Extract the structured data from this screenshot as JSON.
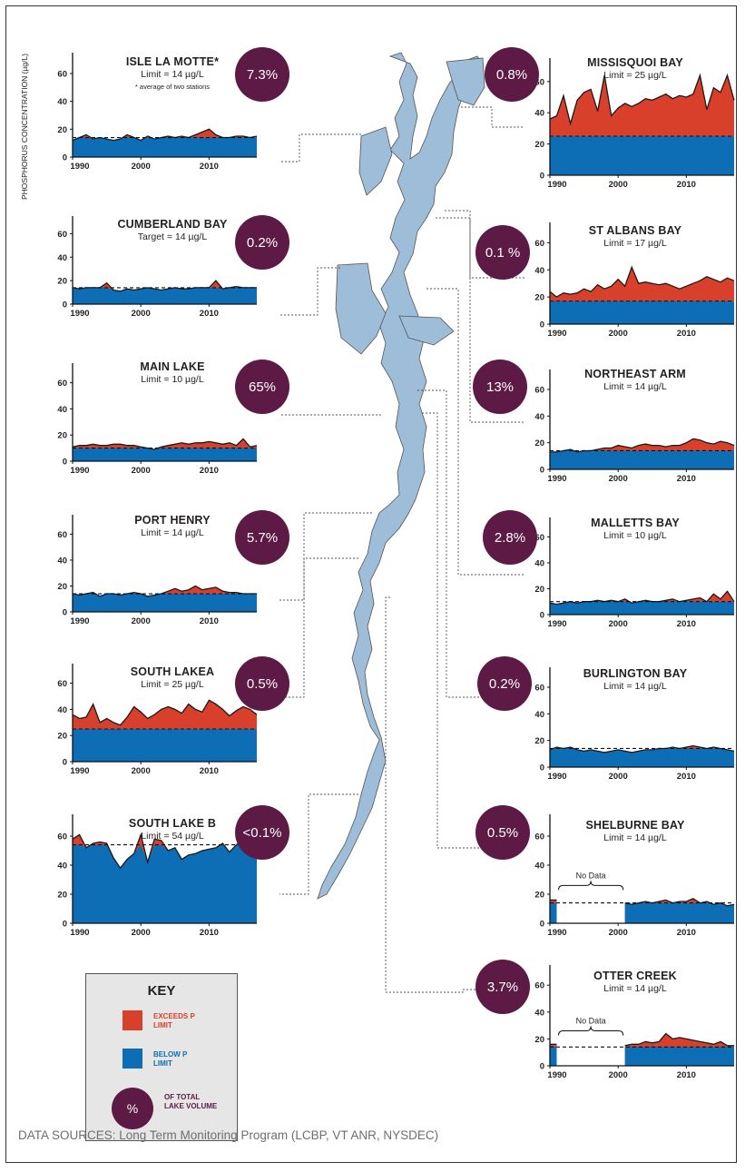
{
  "y_axis_label": "PHOSPHORUS CONCENTRATION (µg/L)",
  "source_text": "DATA SOURCES: Long Term Monitoring Program (LCBP, VT ANR, NYSDEC)",
  "key": {
    "title": "KEY",
    "exceeds_label": "EXCEEDS P LIMIT",
    "below_label": "BELOW P LIMIT",
    "badge_symbol": "%",
    "volume_label": "OF TOTAL LAKE VOLUME"
  },
  "colors": {
    "exceeds": "#d9402b",
    "below": "#0d6db5",
    "badge": "#5c1a44",
    "lake": "#9dbdd9"
  },
  "no_data_label": "No Data",
  "chart_data": [
    {
      "id": "isle-la-motte",
      "type": "area",
      "title": "ISLE LA MOTTE*",
      "limit_text": "Limit = 14 µg/L",
      "note": "* average of two stations",
      "percent": "7.3%",
      "limit": 14,
      "x": [
        1990,
        1991,
        1992,
        1993,
        1994,
        1995,
        1996,
        1997,
        1998,
        1999,
        2000,
        2001,
        2002,
        2003,
        2004,
        2005,
        2006,
        2007,
        2008,
        2009,
        2010,
        2011,
        2012,
        2013,
        2014,
        2015,
        2016,
        2017
      ],
      "values": [
        12,
        14,
        16,
        13,
        14,
        13,
        12,
        13,
        16,
        14,
        12,
        15,
        13,
        14,
        15,
        14,
        15,
        14,
        16,
        18,
        20,
        16,
        14,
        14,
        15,
        15,
        14,
        15
      ],
      "yticks": [
        0,
        20,
        40,
        60
      ],
      "xticks": [
        1990,
        2000,
        2010
      ],
      "xlim": [
        1990,
        2017
      ],
      "ylim": [
        0,
        75
      ]
    },
    {
      "id": "cumberland-bay",
      "type": "area",
      "title": "CUMBERLAND BAY",
      "limit_text": "Target = 14 µg/L",
      "percent": "0.2%",
      "limit": 14,
      "x": [
        1990,
        1991,
        1992,
        1993,
        1994,
        1995,
        1996,
        1997,
        1998,
        1999,
        2000,
        2001,
        2002,
        2003,
        2004,
        2005,
        2006,
        2007,
        2008,
        2009,
        2010,
        2011,
        2012,
        2013,
        2014,
        2015,
        2016,
        2017
      ],
      "values": [
        14,
        13,
        14,
        14,
        14,
        18,
        12,
        11,
        13,
        12,
        13,
        14,
        13,
        12,
        13,
        14,
        13,
        13,
        14,
        14,
        14,
        20,
        13,
        14,
        15,
        14,
        14,
        14
      ],
      "yticks": [
        0,
        20,
        40,
        60
      ],
      "xticks": [
        1990,
        2000,
        2010
      ],
      "xlim": [
        1990,
        2017
      ],
      "ylim": [
        0,
        75
      ]
    },
    {
      "id": "main-lake",
      "type": "area",
      "title": "MAIN LAKE",
      "limit_text": "Limit = 10 µg/L",
      "percent": "65%",
      "limit": 10,
      "x": [
        1990,
        1991,
        1992,
        1993,
        1994,
        1995,
        1996,
        1997,
        1998,
        1999,
        2000,
        2001,
        2002,
        2003,
        2004,
        2005,
        2006,
        2007,
        2008,
        2009,
        2010,
        2011,
        2012,
        2013,
        2014,
        2015,
        2016,
        2017
      ],
      "values": [
        11,
        12,
        12,
        13,
        12,
        12,
        13,
        13,
        12,
        12,
        11,
        10,
        9,
        11,
        12,
        13,
        14,
        13,
        14,
        14,
        15,
        14,
        13,
        14,
        12,
        17,
        11,
        12
      ],
      "yticks": [
        0,
        20,
        40,
        60
      ],
      "xticks": [
        1990,
        2000,
        2010
      ],
      "xlim": [
        1990,
        2017
      ],
      "ylim": [
        0,
        75
      ]
    },
    {
      "id": "port-henry",
      "type": "area",
      "title": "PORT HENRY",
      "limit_text": "Limit = 14 µg/L",
      "percent": "5.7%",
      "limit": 14,
      "x": [
        1990,
        1991,
        1992,
        1993,
        1994,
        1995,
        1996,
        1997,
        1998,
        1999,
        2000,
        2001,
        2002,
        2003,
        2004,
        2005,
        2006,
        2007,
        2008,
        2009,
        2010,
        2011,
        2012,
        2013,
        2014,
        2015,
        2016,
        2017
      ],
      "values": [
        14,
        13,
        14,
        15,
        12,
        14,
        14,
        13,
        14,
        15,
        14,
        12,
        13,
        14,
        16,
        18,
        16,
        17,
        20,
        17,
        18,
        19,
        16,
        15,
        15,
        14,
        14,
        14
      ],
      "yticks": [
        0,
        20,
        40,
        60
      ],
      "xticks": [
        1990,
        2000,
        2010
      ],
      "xlim": [
        1990,
        2017
      ],
      "ylim": [
        0,
        75
      ]
    },
    {
      "id": "south-lake-a",
      "type": "area",
      "title": "SOUTH LAKEA",
      "limit_text": "Limit = 25 µg/L",
      "percent": "0.5%",
      "limit": 25,
      "x": [
        1990,
        1991,
        1992,
        1993,
        1994,
        1995,
        1996,
        1997,
        1998,
        1999,
        2000,
        2001,
        2002,
        2003,
        2004,
        2005,
        2006,
        2007,
        2008,
        2009,
        2010,
        2011,
        2012,
        2013,
        2014,
        2015,
        2016,
        2017
      ],
      "values": [
        36,
        33,
        34,
        44,
        30,
        33,
        30,
        28,
        34,
        42,
        38,
        33,
        36,
        40,
        42,
        40,
        37,
        44,
        40,
        38,
        47,
        44,
        40,
        35,
        39,
        42,
        40,
        36
      ],
      "yticks": [
        0,
        20,
        40,
        60
      ],
      "xticks": [
        1990,
        2000,
        2010
      ],
      "xlim": [
        1990,
        2017
      ],
      "ylim": [
        0,
        75
      ]
    },
    {
      "id": "south-lake-b",
      "type": "area",
      "title": "SOUTH LAKE B",
      "limit_text": "Limit = 54 µg/L",
      "percent": "<0.1%",
      "limit": 54,
      "x": [
        1990,
        1991,
        1992,
        1993,
        1994,
        1995,
        1996,
        1997,
        1998,
        1999,
        2000,
        2001,
        2002,
        2003,
        2004,
        2005,
        2006,
        2007,
        2008,
        2009,
        2010,
        2011,
        2012,
        2013,
        2014,
        2015,
        2016,
        2017
      ],
      "values": [
        58,
        61,
        52,
        55,
        56,
        55,
        45,
        38,
        44,
        48,
        61,
        42,
        58,
        57,
        50,
        52,
        44,
        47,
        48,
        50,
        51,
        52,
        55,
        49,
        54,
        57,
        58,
        48
      ],
      "yticks": [
        0,
        20,
        40,
        60
      ],
      "xticks": [
        1990,
        2000,
        2010
      ],
      "xlim": [
        1990,
        2017
      ],
      "ylim": [
        0,
        75
      ]
    },
    {
      "id": "missisquoi-bay",
      "type": "area",
      "title": "MISSISQUOI BAY",
      "limit_text": "Limit = 25 µg/L",
      "percent": "0.8%",
      "limit": 25,
      "x": [
        1990,
        1991,
        1992,
        1993,
        1994,
        1995,
        1996,
        1997,
        1998,
        1999,
        2000,
        2001,
        2002,
        2003,
        2004,
        2005,
        2006,
        2007,
        2008,
        2009,
        2010,
        2011,
        2012,
        2013,
        2014,
        2015,
        2016,
        2017
      ],
      "values": [
        36,
        38,
        51,
        33,
        48,
        53,
        55,
        41,
        64,
        38,
        43,
        46,
        44,
        46,
        49,
        48,
        50,
        52,
        49,
        51,
        50,
        52,
        64,
        42,
        56,
        53,
        64,
        48
      ],
      "yticks": [
        0,
        20,
        40,
        60
      ],
      "xticks": [
        1990,
        2000,
        2010
      ],
      "xlim": [
        1990,
        2017
      ],
      "ylim": [
        0,
        75
      ]
    },
    {
      "id": "st-albans-bay",
      "type": "area",
      "title": "ST ALBANS BAY",
      "limit_text": "Limit = 17 µg/L",
      "percent": "0.1 %",
      "limit": 17,
      "x": [
        1990,
        1991,
        1992,
        1993,
        1994,
        1995,
        1996,
        1997,
        1998,
        1999,
        2000,
        2001,
        2002,
        2003,
        2004,
        2005,
        2006,
        2007,
        2008,
        2009,
        2010,
        2011,
        2012,
        2013,
        2014,
        2015,
        2016,
        2017
      ],
      "values": [
        24,
        20,
        23,
        22,
        23,
        26,
        24,
        29,
        26,
        28,
        33,
        28,
        42,
        30,
        31,
        30,
        29,
        30,
        28,
        26,
        28,
        30,
        32,
        35,
        33,
        31,
        34,
        32
      ],
      "yticks": [
        0,
        20,
        40,
        60
      ],
      "xticks": [
        1990,
        2000,
        2010
      ],
      "xlim": [
        1990,
        2017
      ],
      "ylim": [
        0,
        75
      ]
    },
    {
      "id": "northeast-arm",
      "type": "area",
      "title": "NORTHEAST ARM",
      "limit_text": "Limit = 14 µg/L",
      "percent": "13%",
      "limit": 14,
      "x": [
        1990,
        1991,
        1992,
        1993,
        1994,
        1995,
        1996,
        1997,
        1998,
        1999,
        2000,
        2001,
        2002,
        2003,
        2004,
        2005,
        2006,
        2007,
        2008,
        2009,
        2010,
        2011,
        2012,
        2013,
        2014,
        2015,
        2016,
        2017
      ],
      "values": [
        13,
        13,
        14,
        15,
        13,
        14,
        14,
        15,
        16,
        16,
        18,
        17,
        16,
        18,
        19,
        18,
        18,
        17,
        18,
        18,
        20,
        23,
        22,
        20,
        19,
        21,
        20,
        18
      ],
      "yticks": [
        0,
        20,
        40,
        60
      ],
      "xticks": [
        1990,
        2000,
        2010
      ],
      "xlim": [
        1990,
        2017
      ],
      "ylim": [
        0,
        75
      ]
    },
    {
      "id": "malletts-bay",
      "type": "area",
      "title": "MALLETTS BAY",
      "limit_text": "Limit = 10 µg/L",
      "percent": "2.8%",
      "limit": 10,
      "x": [
        1990,
        1991,
        1992,
        1993,
        1994,
        1995,
        1996,
        1997,
        1998,
        1999,
        2000,
        2001,
        2002,
        2003,
        2004,
        2005,
        2006,
        2007,
        2008,
        2009,
        2010,
        2011,
        2012,
        2013,
        2014,
        2015,
        2016,
        2017
      ],
      "values": [
        9,
        8,
        9,
        10,
        9,
        10,
        10,
        11,
        10,
        11,
        10,
        12,
        9,
        10,
        11,
        10,
        10,
        11,
        12,
        10,
        11,
        12,
        13,
        10,
        16,
        12,
        18,
        10
      ],
      "yticks": [
        0,
        20,
        40,
        60
      ],
      "xticks": [
        1990,
        2000,
        2010
      ],
      "xlim": [
        1990,
        2017
      ],
      "ylim": [
        0,
        75
      ]
    },
    {
      "id": "burlington-bay",
      "type": "area",
      "title": "BURLINGTON BAY",
      "limit_text": "Limit = 14 µg/L",
      "percent": "0.2%",
      "limit": 14,
      "x": [
        1990,
        1991,
        1992,
        1993,
        1994,
        1995,
        1996,
        1997,
        1998,
        1999,
        2000,
        2001,
        2002,
        2003,
        2004,
        2005,
        2006,
        2007,
        2008,
        2009,
        2010,
        2011,
        2012,
        2013,
        2014,
        2015,
        2016,
        2017
      ],
      "values": [
        13,
        15,
        14,
        15,
        13,
        12,
        13,
        12,
        11,
        12,
        13,
        12,
        11,
        12,
        13,
        13,
        14,
        14,
        15,
        14,
        15,
        16,
        15,
        14,
        15,
        14,
        13,
        12
      ],
      "yticks": [
        0,
        20,
        40,
        60
      ],
      "xticks": [
        1990,
        2000,
        2010
      ],
      "xlim": [
        1990,
        2017
      ],
      "ylim": [
        0,
        75
      ]
    },
    {
      "id": "shelburne-bay",
      "type": "area",
      "title": "SHELBURNE BAY",
      "limit_text": "Limit = 14 µg/L",
      "percent": "0.5%",
      "limit": 14,
      "no_data": [
        1991,
        2001
      ],
      "x": [
        1990,
        1991,
        2001,
        2002,
        2003,
        2004,
        2005,
        2006,
        2007,
        2008,
        2009,
        2010,
        2011,
        2012,
        2013,
        2014,
        2015,
        2016,
        2017
      ],
      "values": [
        16,
        16,
        14,
        13,
        14,
        15,
        14,
        15,
        16,
        14,
        15,
        15,
        17,
        14,
        15,
        13,
        14,
        12,
        13
      ],
      "yticks": [
        0,
        20,
        40,
        60
      ],
      "xticks": [
        1990,
        2000,
        2010
      ],
      "xlim": [
        1990,
        2017
      ],
      "ylim": [
        0,
        75
      ]
    },
    {
      "id": "otter-creek",
      "type": "area",
      "title": "OTTER CREEK",
      "limit_text": "Limit = 14 µg/L",
      "percent": "3.7%",
      "limit": 14,
      "no_data": [
        1991,
        2001
      ],
      "x": [
        1990,
        1991,
        2001,
        2002,
        2003,
        2004,
        2005,
        2006,
        2007,
        2008,
        2009,
        2010,
        2011,
        2012,
        2013,
        2014,
        2015,
        2016,
        2017
      ],
      "values": [
        16,
        16,
        15,
        16,
        16,
        18,
        17,
        18,
        24,
        20,
        21,
        20,
        19,
        18,
        17,
        16,
        18,
        15,
        15
      ],
      "yticks": [
        0,
        20,
        40,
        60
      ],
      "xticks": [
        1990,
        2000,
        2010
      ],
      "xlim": [
        1990,
        2017
      ],
      "ylim": [
        0,
        75
      ]
    }
  ]
}
